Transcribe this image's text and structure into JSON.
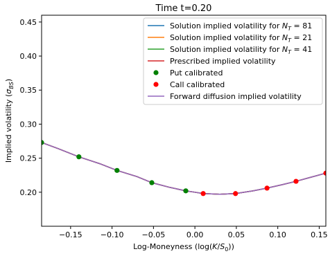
{
  "chart_data": {
    "type": "line",
    "title": "Time t=0.20",
    "xlabel": "Log-Moneyness (log(K/S₀))",
    "ylabel": "Implied volatility (σBS)",
    "xlim": [
      -0.185,
      0.158
    ],
    "ylim": [
      0.15,
      0.46
    ],
    "xticks": [
      -0.15,
      -0.1,
      -0.05,
      0.0,
      0.05,
      0.1,
      0.15
    ],
    "xtick_labels": [
      "−0.15",
      "−0.10",
      "−0.05",
      "0.00",
      "0.05",
      "0.10",
      "0.15"
    ],
    "yticks": [
      0.2,
      0.25,
      0.3,
      0.35,
      0.4,
      0.45
    ],
    "ytick_labels": [
      "0.20",
      "0.25",
      "0.30",
      "0.35",
      "0.40",
      "0.45"
    ],
    "grid": false,
    "legend_position": "top-right",
    "x": [
      -0.185,
      -0.165,
      -0.14,
      -0.115,
      -0.094,
      -0.07,
      -0.052,
      -0.03,
      -0.011,
      0.0,
      0.01,
      0.03,
      0.049,
      0.07,
      0.087,
      0.105,
      0.122,
      0.14,
      0.158
    ],
    "series": [
      {
        "name": "Solution implied volatility for N_T = 81",
        "kind": "line",
        "color": "#1f77b4",
        "values": [
          0.273,
          0.264,
          0.252,
          0.242,
          0.232,
          0.223,
          0.214,
          0.207,
          0.202,
          0.2,
          0.198,
          0.197,
          0.198,
          0.202,
          0.206,
          0.211,
          0.216,
          0.222,
          0.228
        ]
      },
      {
        "name": "Solution implied volatility for N_T = 21",
        "kind": "line",
        "color": "#ff7f0e",
        "values": [
          0.273,
          0.264,
          0.252,
          0.242,
          0.232,
          0.223,
          0.214,
          0.207,
          0.202,
          0.2,
          0.198,
          0.197,
          0.198,
          0.202,
          0.206,
          0.211,
          0.216,
          0.222,
          0.228
        ]
      },
      {
        "name": "Solution implied volatility for N_T = 41",
        "kind": "line",
        "color": "#2ca02c",
        "values": [
          0.273,
          0.264,
          0.252,
          0.242,
          0.232,
          0.223,
          0.214,
          0.207,
          0.202,
          0.2,
          0.198,
          0.197,
          0.198,
          0.202,
          0.206,
          0.211,
          0.216,
          0.222,
          0.228
        ]
      },
      {
        "name": "Prescribed implied volatility",
        "kind": "line",
        "color": "#d62728",
        "values": [
          0.273,
          0.264,
          0.252,
          0.242,
          0.232,
          0.223,
          0.214,
          0.207,
          0.202,
          0.2,
          0.198,
          0.197,
          0.198,
          0.202,
          0.206,
          0.211,
          0.216,
          0.222,
          0.228
        ]
      },
      {
        "name": "Forward diffusion implied volatility",
        "kind": "line",
        "color": "#9467bd",
        "values": [
          0.273,
          0.264,
          0.252,
          0.242,
          0.232,
          0.223,
          0.214,
          0.207,
          0.202,
          0.2,
          0.198,
          0.197,
          0.198,
          0.202,
          0.206,
          0.211,
          0.216,
          0.222,
          0.228
        ]
      }
    ],
    "scatter_series": [
      {
        "name": "Put calibrated",
        "color": "#008000",
        "points": [
          [
            -0.185,
            0.273
          ],
          [
            -0.14,
            0.252
          ],
          [
            -0.094,
            0.232
          ],
          [
            -0.052,
            0.214
          ],
          [
            -0.011,
            0.202
          ]
        ]
      },
      {
        "name": "Call calibrated",
        "color": "#ff0000",
        "points": [
          [
            0.01,
            0.198
          ],
          [
            0.049,
            0.198
          ],
          [
            0.087,
            0.206
          ],
          [
            0.122,
            0.216
          ],
          [
            0.158,
            0.228
          ]
        ]
      }
    ],
    "legend": [
      {
        "label": "Solution implied volatility for N_T = 81",
        "marker": "line",
        "color": "#1f77b4",
        "label_main": "Solution implied volatility for ",
        "label_math": "N",
        "label_sub": "T",
        "label_tail": " = 81"
      },
      {
        "label": "Solution implied volatility for N_T = 21",
        "marker": "line",
        "color": "#ff7f0e",
        "label_main": "Solution implied volatility for ",
        "label_math": "N",
        "label_sub": "T",
        "label_tail": " = 21"
      },
      {
        "label": "Solution implied volatility for N_T = 41",
        "marker": "line",
        "color": "#2ca02c",
        "label_main": "Solution implied volatility for ",
        "label_math": "N",
        "label_sub": "T",
        "label_tail": " = 41"
      },
      {
        "label": "Prescribed implied volatility",
        "marker": "line",
        "color": "#d62728",
        "label_main": "Prescribed implied volatility"
      },
      {
        "label": "Put calibrated",
        "marker": "dot",
        "color": "#008000",
        "label_main": "Put calibrated"
      },
      {
        "label": "Call calibrated",
        "marker": "dot",
        "color": "#ff0000",
        "label_main": "Call calibrated"
      },
      {
        "label": "Forward diffusion implied volatility",
        "marker": "line",
        "color": "#9467bd",
        "label_main": "Forward diffusion implied volatility"
      }
    ]
  }
}
